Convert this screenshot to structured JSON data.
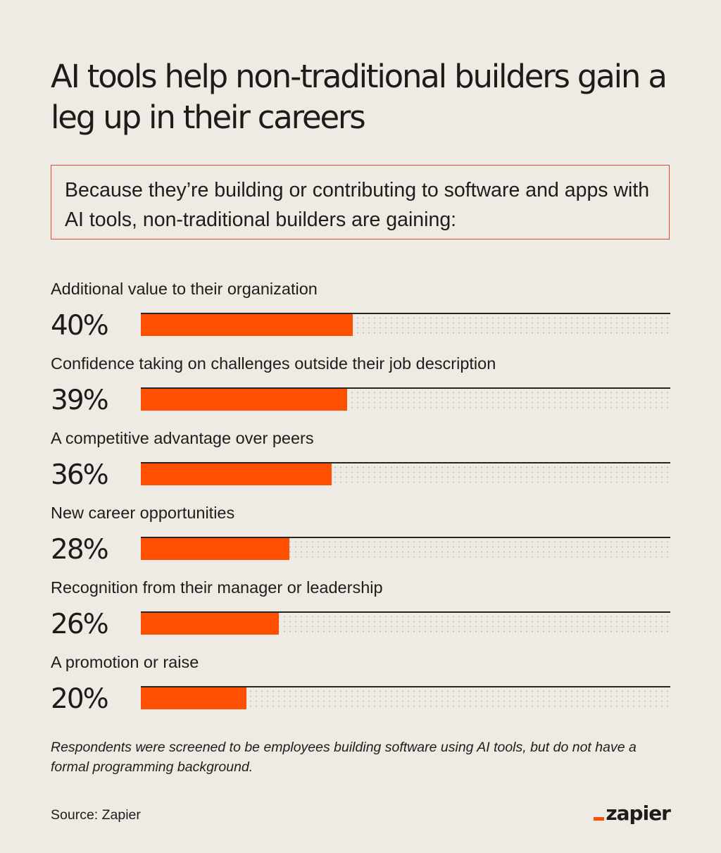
{
  "title": "AI tools help non-traditional builders gain a leg up in their careers",
  "callout": "Because they’re building or contributing to software and apps with AI tools, non-traditional builders are gaining:",
  "footnote": "Respondents were screened to be employees building software using AI tools, but do not have a formal programming background.",
  "source": "Source: Zapier",
  "logo": "zapier",
  "colors": {
    "accent": "#ff4f00",
    "background": "#eeebe5",
    "text": "#1f1b18"
  },
  "chart_data": {
    "type": "bar",
    "orientation": "horizontal",
    "categories": [
      "Additional value to their organization",
      "Confidence taking on challenges outside their job description",
      "A competitive advantage over peers",
      "New career opportunities",
      "Recognition from their manager or leadership",
      "A promotion or raise"
    ],
    "values": [
      40,
      39,
      36,
      28,
      26,
      20
    ],
    "value_labels": [
      "40%",
      "39%",
      "36%",
      "28%",
      "26%",
      "20%"
    ],
    "unit": "%",
    "xlim": [
      0,
      100
    ],
    "grid": false
  }
}
